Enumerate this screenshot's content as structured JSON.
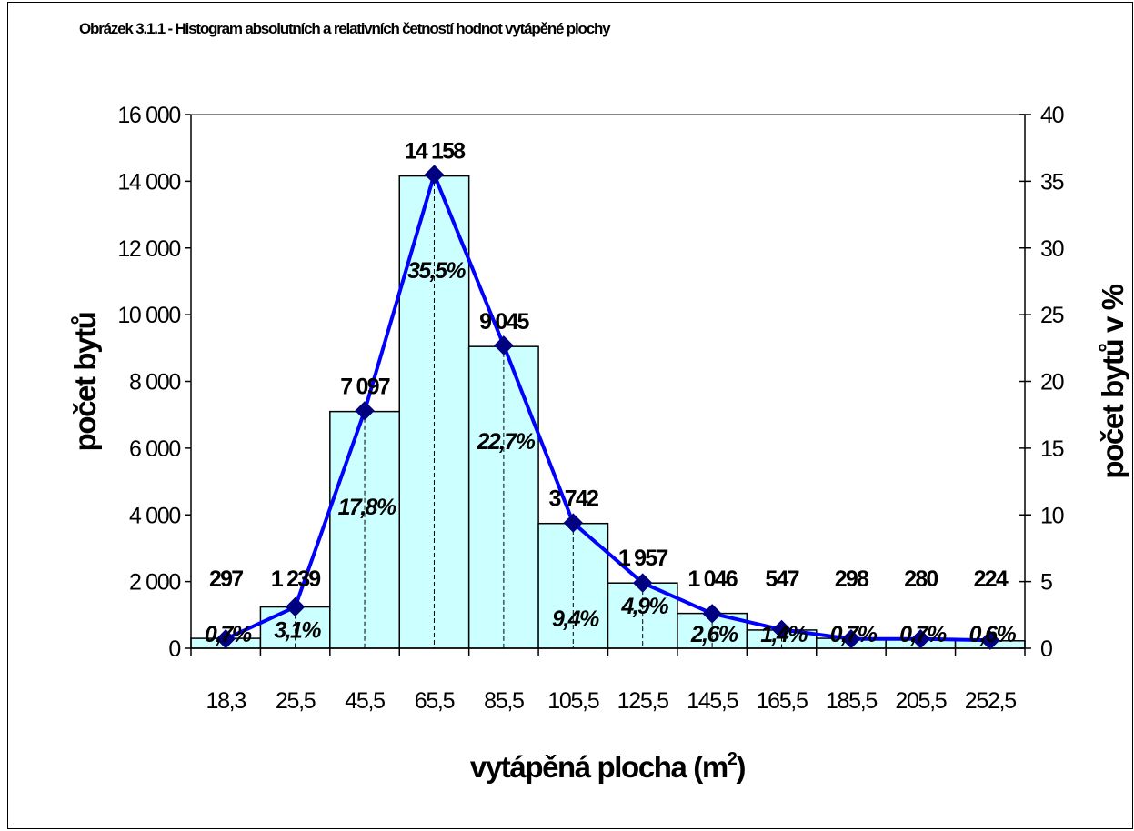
{
  "chart_data": {
    "type": "bar",
    "title": "Obrázek 3.1.1 - Histogram absolutních a relativních četností hodnot vytápěné plochy",
    "xlabel": "vytápěná plocha (m2)",
    "xlabel_main": "vytápěná plocha (m",
    "xlabel_sup": "2",
    "xlabel_tail": ")",
    "ylabel": "počet bytů",
    "y2label": "počet bytů v %",
    "categories": [
      "18,3",
      "25,5",
      "45,5",
      "65,5",
      "85,5",
      "105,5",
      "125,5",
      "145,5",
      "165,5",
      "185,5",
      "205,5",
      "252,5"
    ],
    "series": [
      {
        "type": "bar",
        "values": [
          297,
          1239,
          7097,
          14158,
          9045,
          3742,
          1957,
          1046,
          547,
          298,
          280,
          224
        ],
        "labels": [
          "297",
          "1 239",
          "7 097",
          "14 158",
          "9 045",
          "3 742",
          "1 957",
          "1 046",
          "547",
          "298",
          "280",
          "224"
        ],
        "color": "#ccffff"
      },
      {
        "type": "line",
        "axis": "right",
        "values": [
          0.7,
          3.1,
          17.8,
          35.5,
          22.7,
          9.4,
          4.9,
          2.6,
          1.4,
          0.7,
          0.7,
          0.6
        ],
        "labels": [
          "0,7%",
          "3,1%",
          "17,8%",
          "35,5%",
          "22,7%",
          "9,4%",
          "4,9%",
          "2,6%",
          "1,4%",
          "0,7%",
          "0,7%",
          "0,6%"
        ],
        "color": "#0000ff",
        "marker_color": "#000080"
      }
    ],
    "ylim": [
      0,
      16000
    ],
    "y_ticks": [
      0,
      2000,
      4000,
      6000,
      8000,
      10000,
      12000,
      14000,
      16000
    ],
    "y_tick_labels": [
      "0",
      "2 000",
      "4 000",
      "6 000",
      "8 000",
      "10 000",
      "12 000",
      "14 000",
      "16 000"
    ],
    "y2lim": [
      0,
      40
    ],
    "y2_ticks": [
      0,
      5,
      10,
      15,
      20,
      25,
      30,
      35,
      40
    ],
    "y2_tick_labels": [
      "0",
      "5",
      "10",
      "15",
      "20",
      "25",
      "30",
      "35",
      "40"
    ],
    "grid": false,
    "legend": "none"
  }
}
